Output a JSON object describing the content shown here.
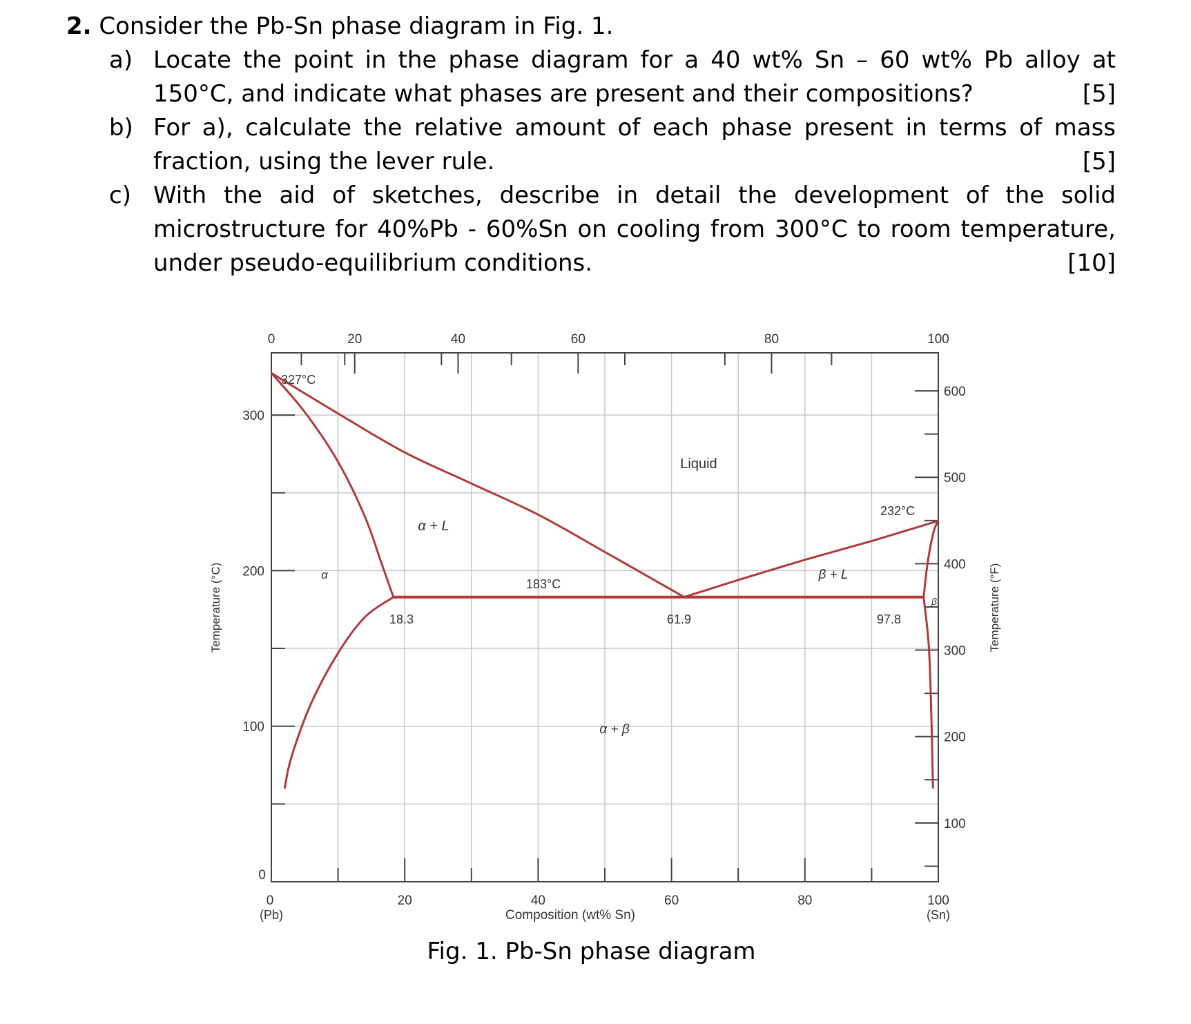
{
  "question": {
    "number": "2.",
    "intro": "Consider the Pb-Sn phase diagram in Fig. 1.",
    "parts": [
      {
        "label": "a)",
        "text": "Locate the point in the phase diagram for a 40 wt% Sn – 60 wt% Pb alloy at 150°C, and indicate what phases are present and their compositions?",
        "marks": "[5]"
      },
      {
        "label": "b)",
        "text": "For a), calculate the relative amount of each phase present in terms of mass fraction, using the lever rule.",
        "marks": "[5]"
      },
      {
        "label": "c)",
        "text": "With the aid of sketches, describe in detail the development of the solid microstructure for 40%Pb - 60%Sn on cooling from 300°C to room temperature, under pseudo-equilibrium conditions.",
        "marks": "[10]"
      }
    ]
  },
  "figure": {
    "caption": "Fig. 1.  Pb-Sn phase diagram",
    "x_axis": {
      "label": "Composition (wt% Sn)",
      "min": 0,
      "max": 100,
      "tick_labels_bottom": [
        "0",
        "20",
        "40",
        "60",
        "80",
        "100"
      ],
      "tick_labels_top": [
        "0",
        "20",
        "40",
        "60",
        "80",
        "100"
      ],
      "left_end_label": "(Pb)",
      "right_end_label": "(Sn)"
    },
    "y_axis_left": {
      "label": "Temperature (°C)",
      "min": 0,
      "max": 340,
      "tick_labels": [
        "0",
        "100",
        "200",
        "300"
      ]
    },
    "y_axis_right": {
      "label": "Temperature (°F)",
      "tick_labels": [
        "100",
        "200",
        "300",
        "400",
        "500",
        "600"
      ]
    },
    "phase_labels": {
      "liquid": "Liquid",
      "alpha_liquid": "α + L",
      "beta_liquid": "β + L",
      "alpha_beta": "α + β",
      "alpha": "α",
      "beta": "β"
    },
    "annotations": {
      "pb_melting": "327°C",
      "sn_melting": "232°C",
      "eutectic_temp": "183°C",
      "alpha_max": "18.3",
      "eutectic_comp": "61.9",
      "beta_min": "97.8"
    },
    "line_color": "#b03a3a",
    "grid_color": "#c8c8c8"
  },
  "chart_data": {
    "type": "line",
    "xlabel": "Composition (wt% Sn)",
    "ylabel": "Temperature (°C)",
    "xlim": [
      0,
      100
    ],
    "ylim": [
      0,
      340
    ],
    "grid": true,
    "series": [
      {
        "id": "liquidus-left",
        "x": [
          0,
          10,
          20,
          30,
          40,
          50,
          61.9
        ],
        "y": [
          327,
          301,
          276,
          256,
          236,
          212,
          183
        ]
      },
      {
        "id": "liquidus-right",
        "x": [
          61.9,
          70,
          80,
          90,
          100
        ],
        "y": [
          183,
          194,
          207,
          219,
          232
        ]
      },
      {
        "id": "solidus-alpha",
        "x": [
          0,
          5,
          10,
          14,
          16.5,
          18.3
        ],
        "y": [
          327,
          302,
          270,
          235,
          205,
          183
        ]
      },
      {
        "id": "solvus-alpha",
        "x": [
          18.3,
          14,
          10,
          6,
          3,
          2
        ],
        "y": [
          183,
          170,
          147,
          115,
          80,
          60
        ]
      },
      {
        "id": "eutectic-isotherm",
        "x": [
          18.3,
          97.8
        ],
        "y": [
          183,
          183
        ]
      },
      {
        "id": "solidus-beta",
        "x": [
          97.8,
          98.4,
          99.3,
          100
        ],
        "y": [
          183,
          205,
          225,
          232
        ]
      },
      {
        "id": "solvus-beta",
        "x": [
          97.8,
          98.6,
          99.0,
          99.2
        ],
        "y": [
          183,
          150,
          100,
          60
        ]
      }
    ]
  }
}
